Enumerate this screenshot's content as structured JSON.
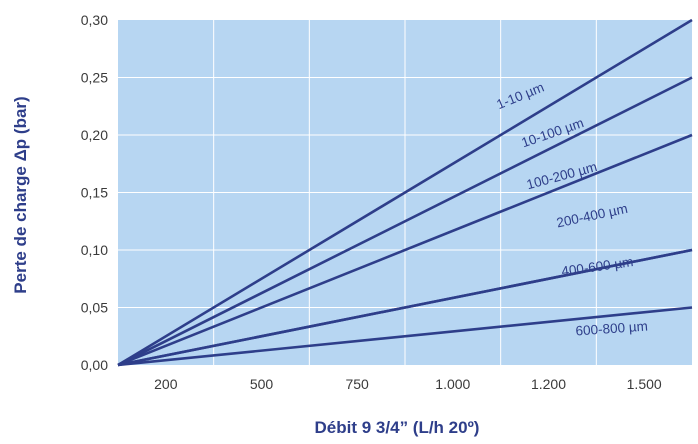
{
  "chart_data": {
    "type": "line",
    "xlabel": "Débit 9 3/4” (L/h 20º)",
    "ylabel": "Perte de charge Δp (bar)",
    "x_categories": [
      "200",
      "500",
      "750",
      "1.000",
      "1.200",
      "1.500"
    ],
    "y_ticks": [
      "0,00",
      "0,05",
      "0,10",
      "0,15",
      "0,20",
      "0,25",
      "0,30"
    ],
    "ylim": [
      0,
      6
    ],
    "xlim": [
      0,
      6
    ],
    "grid": true,
    "series": [
      {
        "name": "1-10 µm",
        "x": [
          0,
          6
        ],
        "y": [
          0,
          6.0
        ]
      },
      {
        "name": "10-100 µm",
        "x": [
          0,
          6
        ],
        "y": [
          0,
          5.0
        ]
      },
      {
        "name": "100-200 µm",
        "x": [
          0,
          6
        ],
        "y": [
          0,
          4.0
        ]
      },
      {
        "name": "200-400 µm",
        "x": [
          0,
          6
        ],
        "y": [
          0,
          2.0
        ]
      },
      {
        "name": "400-600 µm",
        "x": [
          0,
          6
        ],
        "y": [
          0,
          2.0
        ]
      },
      {
        "name": "600-800 µm",
        "x": [
          0,
          6
        ],
        "y": [
          0,
          1.0
        ]
      }
    ],
    "colors": {
      "plot_bg": "#b7d6f2",
      "grid": "#ffffff",
      "line": "#2e3e8a",
      "text": "#2e3e8a"
    }
  }
}
